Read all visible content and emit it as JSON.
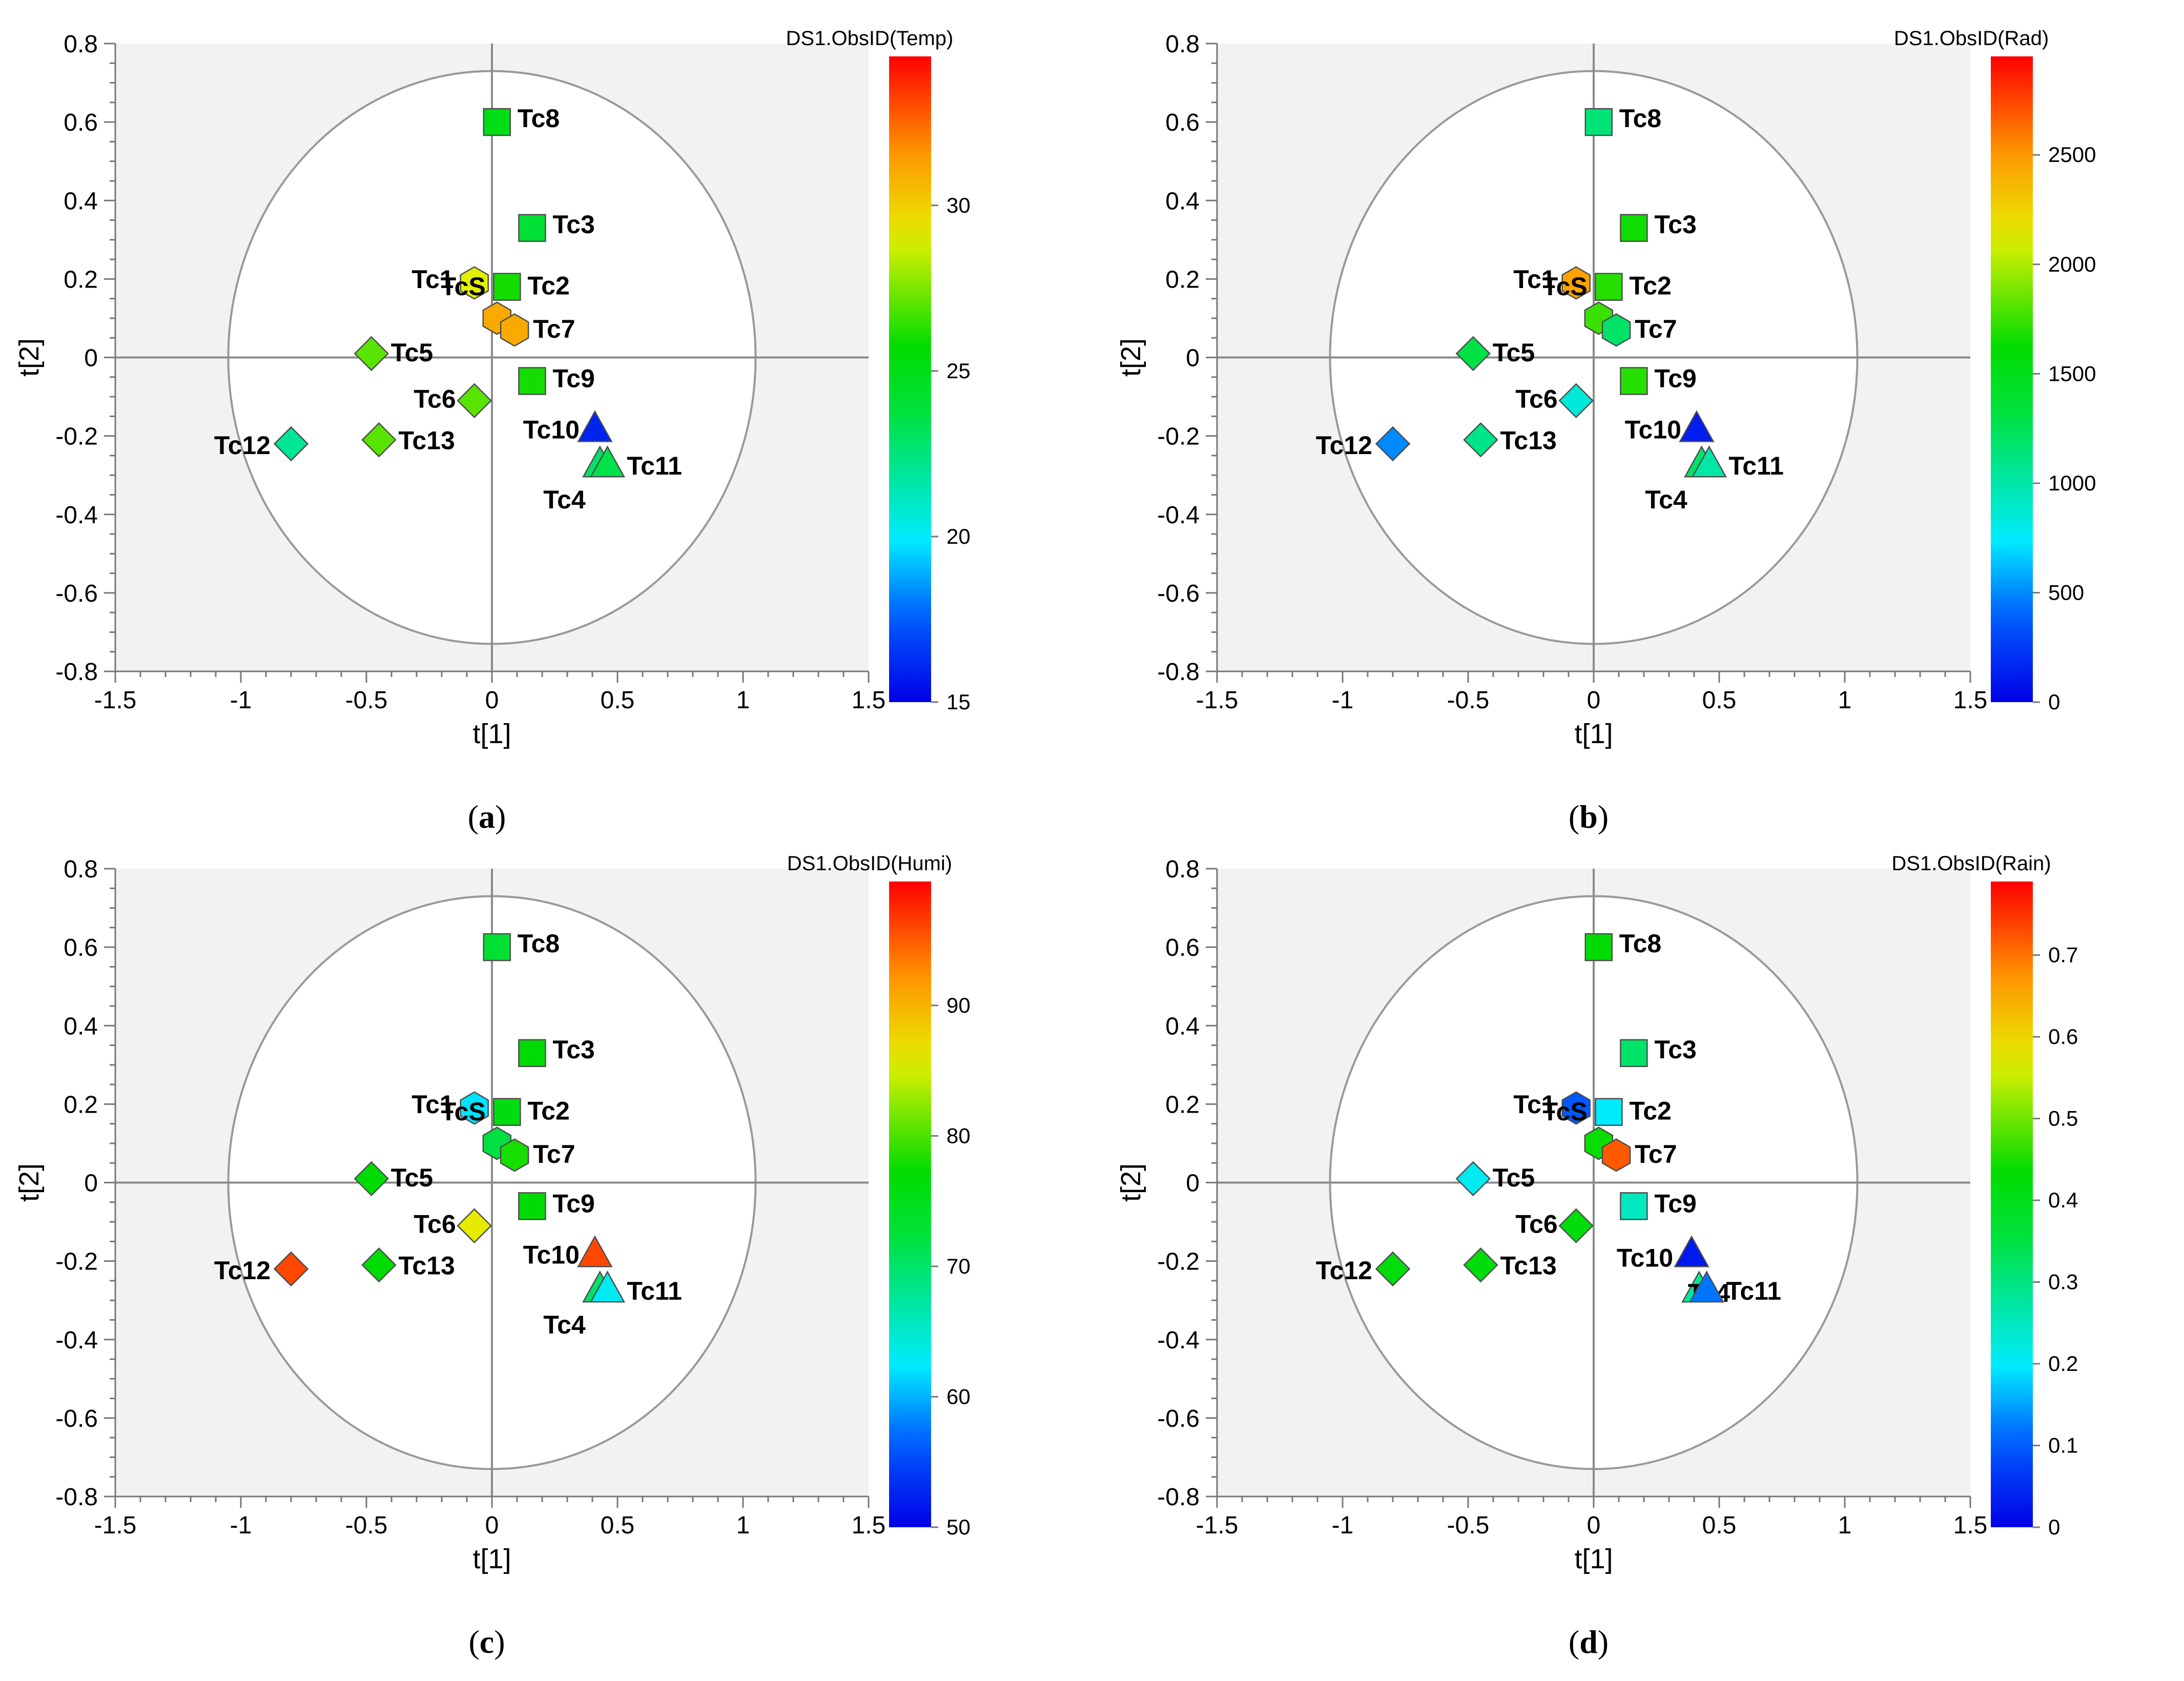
{
  "chart_data": [
    {
      "type": "scatter",
      "panel": "a",
      "caption_letter": "a",
      "xlabel": "t[1]",
      "ylabel": "t[2]",
      "xlim": [
        -1.5,
        1.5
      ],
      "ylim": [
        -0.8,
        0.8
      ],
      "xticks": [
        "-1.5",
        "-1",
        "-0.5",
        "0",
        "0.5",
        "1",
        "1.5"
      ],
      "yticks": [
        "0.8",
        "0.6",
        "0.4",
        "0.2",
        "0",
        "-0.2",
        "-0.4",
        "-0.6",
        "-0.8"
      ],
      "ellipse": {
        "rx": 1.05,
        "ry": 0.73
      },
      "colorbar": {
        "title": "DS1.ObsID(Temp)",
        "min": 15,
        "max": 34.5,
        "ticks": [
          {
            "value": 15,
            "label": "15"
          },
          {
            "value": 20,
            "label": "20"
          },
          {
            "value": 25,
            "label": "25"
          },
          {
            "value": 30,
            "label": "30"
          }
        ]
      },
      "points": [
        {
          "label": "Tc8",
          "x": 0.02,
          "y": 0.6,
          "marker": "square",
          "value": 25
        },
        {
          "label": "Tc3",
          "x": 0.16,
          "y": 0.33,
          "marker": "square",
          "value": 24
        },
        {
          "label": "Tc1",
          "x": -0.07,
          "y": 0.19,
          "marker": "hexagon",
          "value": 29
        },
        {
          "label": "Tc2",
          "x": 0.06,
          "y": 0.18,
          "marker": "square",
          "value": 26
        },
        {
          "label": "TcS",
          "x": 0.02,
          "y": 0.1,
          "marker": "hexagon",
          "value": 31
        },
        {
          "label": "Tc7",
          "x": 0.09,
          "y": 0.07,
          "marker": "hexagon",
          "value": 31
        },
        {
          "label": "Tc5",
          "x": -0.48,
          "y": 0.01,
          "marker": "diamond",
          "value": 27
        },
        {
          "label": "Tc9",
          "x": 0.16,
          "y": -0.06,
          "marker": "square",
          "value": 26
        },
        {
          "label": "Tc6",
          "x": -0.07,
          "y": -0.11,
          "marker": "diamond",
          "value": 27
        },
        {
          "label": "Tc10",
          "x": 0.41,
          "y": -0.18,
          "marker": "triangle",
          "value": 16
        },
        {
          "label": "Tc12",
          "x": -0.8,
          "y": -0.22,
          "marker": "diamond",
          "value": 22
        },
        {
          "label": "Tc13",
          "x": -0.45,
          "y": -0.21,
          "marker": "diamond",
          "value": 27
        },
        {
          "label": "Tc4",
          "x": 0.43,
          "y": -0.27,
          "marker": "triangle",
          "value": 23
        },
        {
          "label": "Tc11",
          "x": 0.46,
          "y": -0.27,
          "marker": "triangle",
          "value": 23.5
        }
      ]
    },
    {
      "type": "scatter",
      "panel": "b",
      "caption_letter": "b",
      "xlabel": "t[1]",
      "ylabel": "t[2]",
      "xlim": [
        -1.5,
        1.5
      ],
      "ylim": [
        -0.8,
        0.8
      ],
      "xticks": [
        "-1.5",
        "-1",
        "-0.5",
        "0",
        "0.5",
        "1",
        "1.5"
      ],
      "yticks": [
        "0.8",
        "0.6",
        "0.4",
        "0.2",
        "0",
        "-0.2",
        "-0.4",
        "-0.6",
        "-0.8"
      ],
      "ellipse": {
        "rx": 1.05,
        "ry": 0.73
      },
      "colorbar": {
        "title": "DS1.ObsID(Rad)",
        "min": 0,
        "max": 2950,
        "ticks": [
          {
            "value": 0,
            "label": "0"
          },
          {
            "value": 500,
            "label": "500"
          },
          {
            "value": 1000,
            "label": "1000"
          },
          {
            "value": 1500,
            "label": "1500"
          },
          {
            "value": 2000,
            "label": "2000"
          },
          {
            "value": 2500,
            "label": "2500"
          }
        ]
      },
      "points": [
        {
          "label": "Tc8",
          "x": 0.02,
          "y": 0.6,
          "marker": "square",
          "value": 1150
        },
        {
          "label": "Tc3",
          "x": 0.16,
          "y": 0.33,
          "marker": "square",
          "value": 1650
        },
        {
          "label": "Tc1",
          "x": -0.07,
          "y": 0.19,
          "marker": "hexagon",
          "value": 2450
        },
        {
          "label": "Tc2",
          "x": 0.06,
          "y": 0.18,
          "marker": "square",
          "value": 1700
        },
        {
          "label": "TcS",
          "x": 0.02,
          "y": 0.1,
          "marker": "hexagon",
          "value": 1750
        },
        {
          "label": "Tc7",
          "x": 0.09,
          "y": 0.07,
          "marker": "hexagon",
          "value": 1200
        },
        {
          "label": "Tc5",
          "x": -0.48,
          "y": 0.01,
          "marker": "diamond",
          "value": 1300
        },
        {
          "label": "Tc9",
          "x": 0.16,
          "y": -0.06,
          "marker": "square",
          "value": 1700
        },
        {
          "label": "Tc6",
          "x": -0.07,
          "y": -0.11,
          "marker": "diamond",
          "value": 850
        },
        {
          "label": "Tc10",
          "x": 0.41,
          "y": -0.18,
          "marker": "triangle",
          "value": 120
        },
        {
          "label": "Tc12",
          "x": -0.8,
          "y": -0.22,
          "marker": "diamond",
          "value": 500
        },
        {
          "label": "Tc13",
          "x": -0.45,
          "y": -0.21,
          "marker": "diamond",
          "value": 1100
        },
        {
          "label": "Tc4",
          "x": 0.43,
          "y": -0.27,
          "marker": "triangle",
          "value": 1200
        },
        {
          "label": "Tc11",
          "x": 0.46,
          "y": -0.27,
          "marker": "triangle",
          "value": 1000
        }
      ]
    },
    {
      "type": "scatter",
      "panel": "c",
      "caption_letter": "c",
      "xlabel": "t[1]",
      "ylabel": "t[2]",
      "xlim": [
        -1.5,
        1.5
      ],
      "ylim": [
        -0.8,
        0.8
      ],
      "xticks": [
        "-1.5",
        "-1",
        "-0.5",
        "0",
        "0.5",
        "1",
        "1.5"
      ],
      "yticks": [
        "0.8",
        "0.6",
        "0.4",
        "0.2",
        "0",
        "-0.2",
        "-0.4",
        "-0.6",
        "-0.8"
      ],
      "ellipse": {
        "rx": 1.05,
        "ry": 0.73
      },
      "colorbar": {
        "title": "DS1.ObsID(Humi)",
        "min": 50,
        "max": 99.5,
        "ticks": [
          {
            "value": 50,
            "label": "50"
          },
          {
            "value": 60,
            "label": "60"
          },
          {
            "value": 70,
            "label": "70"
          },
          {
            "value": 80,
            "label": "80"
          },
          {
            "value": 90,
            "label": "90"
          }
        ]
      },
      "points": [
        {
          "label": "Tc8",
          "x": 0.02,
          "y": 0.6,
          "marker": "square",
          "value": 73
        },
        {
          "label": "Tc3",
          "x": 0.16,
          "y": 0.33,
          "marker": "square",
          "value": 77
        },
        {
          "label": "Tc1",
          "x": -0.07,
          "y": 0.19,
          "marker": "hexagon",
          "value": 62
        },
        {
          "label": "Tc2",
          "x": 0.06,
          "y": 0.18,
          "marker": "square",
          "value": 76
        },
        {
          "label": "TcS",
          "x": 0.02,
          "y": 0.1,
          "marker": "hexagon",
          "value": 72
        },
        {
          "label": "Tc7",
          "x": 0.09,
          "y": 0.07,
          "marker": "hexagon",
          "value": 78
        },
        {
          "label": "Tc5",
          "x": -0.48,
          "y": 0.01,
          "marker": "diamond",
          "value": 77
        },
        {
          "label": "Tc9",
          "x": 0.16,
          "y": -0.06,
          "marker": "square",
          "value": 77
        },
        {
          "label": "Tc6",
          "x": -0.07,
          "y": -0.11,
          "marker": "diamond",
          "value": 86
        },
        {
          "label": "Tc10",
          "x": 0.41,
          "y": -0.18,
          "marker": "triangle",
          "value": 96
        },
        {
          "label": "Tc12",
          "x": -0.8,
          "y": -0.22,
          "marker": "diamond",
          "value": 96
        },
        {
          "label": "Tc13",
          "x": -0.45,
          "y": -0.21,
          "marker": "diamond",
          "value": 77
        },
        {
          "label": "Tc4",
          "x": 0.43,
          "y": -0.27,
          "marker": "triangle",
          "value": 70
        },
        {
          "label": "Tc11",
          "x": 0.46,
          "y": -0.27,
          "marker": "triangle",
          "value": 63
        }
      ]
    },
    {
      "type": "scatter",
      "panel": "d",
      "caption_letter": "d",
      "xlabel": "t[1]",
      "ylabel": "t[2]",
      "xlim": [
        -1.5,
        1.5
      ],
      "ylim": [
        -0.8,
        0.8
      ],
      "xticks": [
        "-1.5",
        "-1",
        "-0.5",
        "0",
        "0.5",
        "1",
        "1.5"
      ],
      "yticks": [
        "0.8",
        "0.6",
        "0.4",
        "0.2",
        "0",
        "-0.2",
        "-0.4",
        "-0.6",
        "-0.8"
      ],
      "ellipse": {
        "rx": 1.05,
        "ry": 0.73
      },
      "colorbar": {
        "title": "DS1.ObsID(Rain)",
        "min": 0,
        "max": 0.79,
        "ticks": [
          {
            "value": 0,
            "label": "0"
          },
          {
            "value": 0.1,
            "label": "0.1"
          },
          {
            "value": 0.2,
            "label": "0.2"
          },
          {
            "value": 0.3,
            "label": "0.3"
          },
          {
            "value": 0.4,
            "label": "0.4"
          },
          {
            "value": 0.5,
            "label": "0.5"
          },
          {
            "value": 0.6,
            "label": "0.6"
          },
          {
            "value": 0.7,
            "label": "0.7"
          }
        ]
      },
      "points": [
        {
          "label": "Tc8",
          "x": 0.02,
          "y": 0.6,
          "marker": "square",
          "value": 0.43
        },
        {
          "label": "Tc3",
          "x": 0.16,
          "y": 0.33,
          "marker": "square",
          "value": 0.32
        },
        {
          "label": "Tc1",
          "x": -0.07,
          "y": 0.19,
          "marker": "hexagon",
          "value": 0.1
        },
        {
          "label": "Tc2",
          "x": 0.06,
          "y": 0.18,
          "marker": "square",
          "value": 0.2
        },
        {
          "label": "TcS",
          "x": 0.02,
          "y": 0.1,
          "marker": "hexagon",
          "value": 0.44
        },
        {
          "label": "Tc7",
          "x": 0.09,
          "y": 0.07,
          "marker": "hexagon",
          "value": 0.72
        },
        {
          "label": "Tc5",
          "x": -0.48,
          "y": 0.01,
          "marker": "diamond",
          "value": 0.21
        },
        {
          "label": "Tc9",
          "x": 0.16,
          "y": -0.06,
          "marker": "square",
          "value": 0.25
        },
        {
          "label": "Tc6",
          "x": -0.07,
          "y": -0.11,
          "marker": "diamond",
          "value": 0.42
        },
        {
          "label": "Tc10",
          "x": 0.39,
          "y": -0.18,
          "marker": "triangle",
          "value": 0.03
        },
        {
          "label": "Tc4",
          "x": 0.42,
          "y": -0.27,
          "marker": "triangle",
          "value": 0.28
        },
        {
          "label": "Tc12",
          "x": -0.8,
          "y": -0.22,
          "marker": "diamond",
          "value": 0.42
        },
        {
          "label": "Tc13",
          "x": -0.45,
          "y": -0.21,
          "marker": "diamond",
          "value": 0.42
        },
        {
          "label": "Tc11",
          "x": 0.45,
          "y": -0.27,
          "marker": "triangle",
          "value": 0.12
        }
      ]
    }
  ]
}
